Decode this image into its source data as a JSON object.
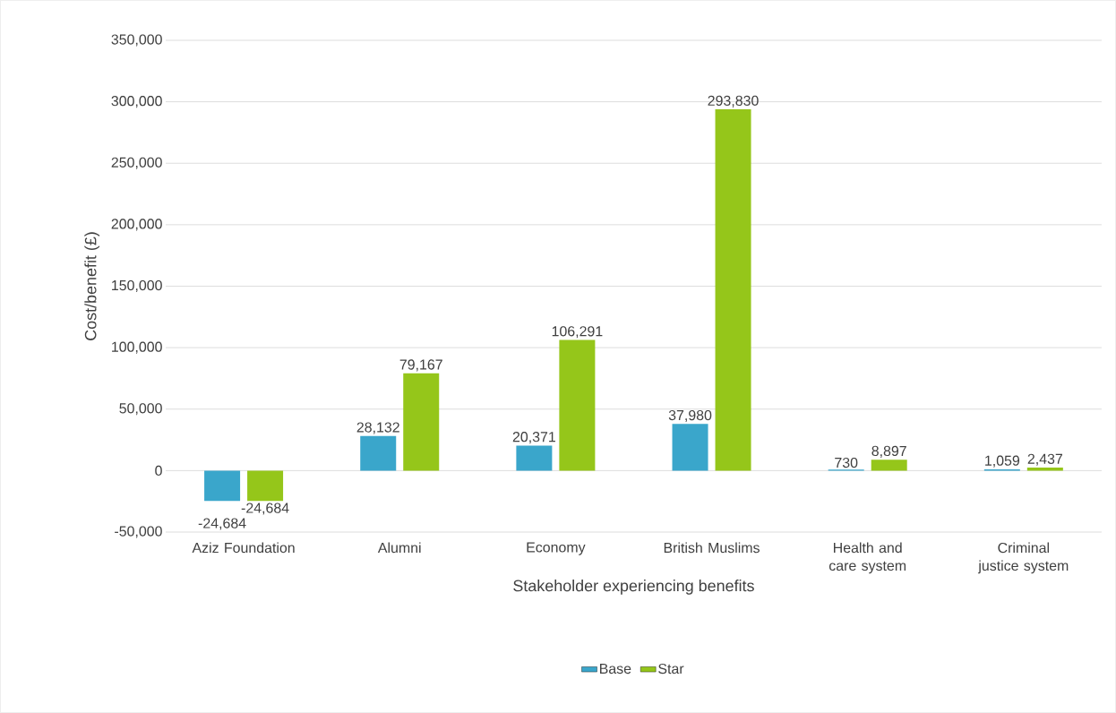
{
  "chart_data": {
    "type": "bar",
    "xlabel": "Stakeholder experiencing benefits",
    "ylabel": "Cost/benefit (£)",
    "categories": [
      "Aziz Foundation",
      "Alumni",
      "Economy",
      "British Muslims",
      "Health and care system",
      "Criminal justice system"
    ],
    "series": [
      {
        "name": "Base",
        "color": "#3aa6cb",
        "values": [
          -24684,
          28132,
          20371,
          37980,
          730,
          1059
        ],
        "value_labels": [
          "-24,684",
          "28,132",
          "20,371",
          "37,980",
          "730",
          "1,059"
        ]
      },
      {
        "name": "Star",
        "color": "#95c61a",
        "values": [
          -24684,
          79167,
          106291,
          293830,
          8897,
          2437
        ],
        "value_labels": [
          "-24,684",
          "79,167",
          "106,291",
          "293,830",
          "8,897",
          "2,437"
        ]
      }
    ],
    "ylim": [
      -50000,
      350000
    ],
    "yticks": [
      {
        "value": -50000,
        "label": "-50,000"
      },
      {
        "value": 0,
        "label": "0"
      },
      {
        "value": 50000,
        "label": "50,000"
      },
      {
        "value": 100000,
        "label": "100,000"
      },
      {
        "value": 150000,
        "label": "150,000"
      },
      {
        "value": 200000,
        "label": "200,000"
      },
      {
        "value": 250000,
        "label": "250,000"
      },
      {
        "value": 300000,
        "label": "300,000"
      },
      {
        "value": 350000,
        "label": "350,000"
      }
    ],
    "grid": "y",
    "legend": "bottom"
  }
}
